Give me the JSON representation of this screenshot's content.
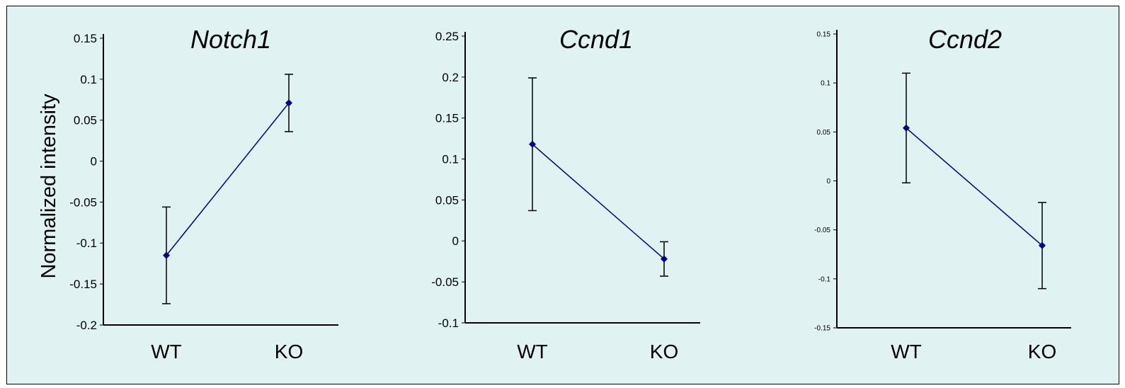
{
  "ylabel": "Normalized intensity",
  "colors": {
    "line": "#000080",
    "marker": "#00008b",
    "axis": "#000000",
    "background": "#e0f2f1"
  },
  "chart_data": [
    {
      "type": "line",
      "title": "Notch1",
      "categories": [
        "WT",
        "KO"
      ],
      "values": [
        -0.115,
        0.071
      ],
      "error": [
        0.059,
        0.035
      ],
      "ylim": [
        -0.2,
        0.15
      ],
      "yticks": [
        "0.15",
        "0.1",
        "0.05",
        "0",
        "-0.05",
        "-0.1",
        "-0.15",
        "-0.2"
      ]
    },
    {
      "type": "line",
      "title": "Ccnd1",
      "categories": [
        "WT",
        "KO"
      ],
      "values": [
        0.118,
        -0.022
      ],
      "error": [
        0.081,
        0.021
      ],
      "ylim": [
        -0.1,
        0.25
      ],
      "yticks": [
        "0.25",
        "0.2",
        "0.15",
        "0.1",
        "0.05",
        "0",
        "-0.05",
        "-0.1"
      ]
    },
    {
      "type": "line",
      "title": "Ccnd2",
      "categories": [
        "WT",
        "KO"
      ],
      "values": [
        0.054,
        -0.066
      ],
      "error": [
        0.056,
        0.044
      ],
      "ylim": [
        -0.15,
        0.15
      ],
      "yticks": [
        "0.15",
        "0.1",
        "0.05",
        "0",
        "-0.05",
        "-0.1",
        "-0.15"
      ]
    }
  ]
}
